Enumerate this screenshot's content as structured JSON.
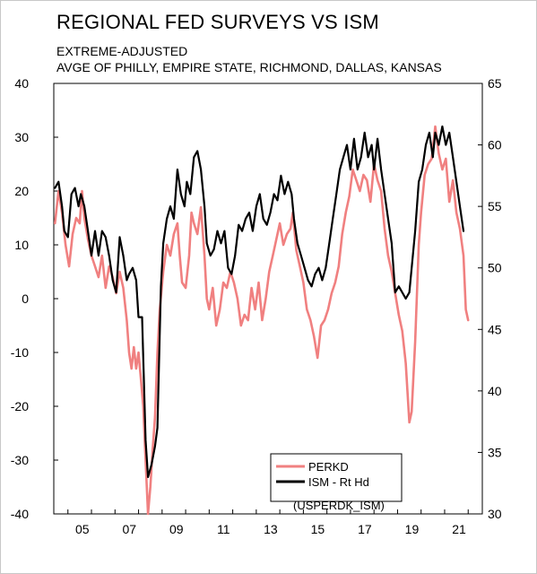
{
  "header": {
    "title": "REGIONAL FED SURVEYS VS ISM",
    "subtitle1": "EXTREME-ADJUSTED",
    "subtitle2": "AVGE OF PHILLY, EMPIRE STATE, RICHMOND, DALLAS, KANSAS"
  },
  "legend": {
    "code": "(USPERDK_ISM)"
  },
  "chart_data": {
    "type": "line",
    "title": "REGIONAL FED SURVEYS VS ISM",
    "subtitle": "EXTREME-ADJUSTED; AVGE OF PHILLY, EMPIRE STATE, RICHMOND, DALLAS, KANSAS",
    "xlabel": "",
    "ylabel_left": "",
    "ylabel_right": "",
    "xlim": [
      2004.4,
      2022.6
    ],
    "ylim_left": [
      -40,
      40
    ],
    "ylim_right": [
      30,
      65
    ],
    "x_ticks": [
      {
        "label": "05",
        "x": 2005.0
      },
      {
        "label": "07",
        "x": 2007.0
      },
      {
        "label": "09",
        "x": 2009.0
      },
      {
        "label": "11",
        "x": 2011.0
      },
      {
        "label": "13",
        "x": 2013.0
      },
      {
        "label": "15",
        "x": 2015.0
      },
      {
        "label": "17",
        "x": 2017.0
      },
      {
        "label": "19",
        "x": 2019.0
      },
      {
        "label": "21",
        "x": 2021.0
      }
    ],
    "y_ticks_left": [
      40,
      30,
      20,
      10,
      0,
      -10,
      -20,
      -30,
      -40
    ],
    "y_ticks_right": [
      65,
      60,
      55,
      50,
      45,
      40,
      35,
      30
    ],
    "grid": false,
    "legend_position": "bottom-right",
    "series": [
      {
        "name": "PERKD",
        "axis": "left",
        "color": "#f08080",
        "points": [
          [
            2004.45,
            14
          ],
          [
            2004.6,
            20
          ],
          [
            2004.75,
            16
          ],
          [
            2004.9,
            10
          ],
          [
            2005.05,
            6
          ],
          [
            2005.2,
            12
          ],
          [
            2005.35,
            15
          ],
          [
            2005.5,
            14
          ],
          [
            2005.6,
            20
          ],
          [
            2005.7,
            15
          ],
          [
            2005.85,
            11
          ],
          [
            2006.0,
            8
          ],
          [
            2006.15,
            6
          ],
          [
            2006.3,
            4
          ],
          [
            2006.45,
            8
          ],
          [
            2006.6,
            2
          ],
          [
            2006.75,
            6
          ],
          [
            2006.9,
            4
          ],
          [
            2007.05,
            1
          ],
          [
            2007.2,
            5
          ],
          [
            2007.35,
            2
          ],
          [
            2007.5,
            -4
          ],
          [
            2007.6,
            -10
          ],
          [
            2007.7,
            -13
          ],
          [
            2007.8,
            -9
          ],
          [
            2007.9,
            -13
          ],
          [
            2008.0,
            -10
          ],
          [
            2008.1,
            -15
          ],
          [
            2008.2,
            -20
          ],
          [
            2008.3,
            -30
          ],
          [
            2008.4,
            -40
          ],
          [
            2008.5,
            -35
          ],
          [
            2008.6,
            -28
          ],
          [
            2008.7,
            -22
          ],
          [
            2008.8,
            -10
          ],
          [
            2008.9,
            -2
          ],
          [
            2009.05,
            5
          ],
          [
            2009.2,
            10
          ],
          [
            2009.35,
            8
          ],
          [
            2009.5,
            12
          ],
          [
            2009.65,
            14
          ],
          [
            2009.75,
            8
          ],
          [
            2009.85,
            3
          ],
          [
            2010.0,
            2
          ],
          [
            2010.15,
            8
          ],
          [
            2010.25,
            16
          ],
          [
            2010.35,
            14
          ],
          [
            2010.5,
            12
          ],
          [
            2010.65,
            17
          ],
          [
            2010.8,
            8
          ],
          [
            2010.9,
            0
          ],
          [
            2011.0,
            -2
          ],
          [
            2011.15,
            2
          ],
          [
            2011.3,
            -5
          ],
          [
            2011.45,
            -2
          ],
          [
            2011.6,
            3
          ],
          [
            2011.75,
            2
          ],
          [
            2011.9,
            5
          ],
          [
            2012.05,
            3
          ],
          [
            2012.2,
            0
          ],
          [
            2012.35,
            -5
          ],
          [
            2012.5,
            -3
          ],
          [
            2012.65,
            -4
          ],
          [
            2012.8,
            2
          ],
          [
            2012.95,
            -2
          ],
          [
            2013.1,
            3
          ],
          [
            2013.25,
            -4
          ],
          [
            2013.4,
            0
          ],
          [
            2013.55,
            5
          ],
          [
            2013.7,
            8
          ],
          [
            2013.85,
            11
          ],
          [
            2014.0,
            14
          ],
          [
            2014.15,
            10
          ],
          [
            2014.3,
            12
          ],
          [
            2014.45,
            13
          ],
          [
            2014.55,
            16
          ],
          [
            2014.7,
            9
          ],
          [
            2014.85,
            6
          ],
          [
            2015.0,
            3
          ],
          [
            2015.15,
            -2
          ],
          [
            2015.3,
            -4
          ],
          [
            2015.45,
            -7
          ],
          [
            2015.6,
            -11
          ],
          [
            2015.75,
            -5
          ],
          [
            2015.9,
            -4
          ],
          [
            2016.05,
            -2
          ],
          [
            2016.2,
            1
          ],
          [
            2016.35,
            3
          ],
          [
            2016.5,
            6
          ],
          [
            2016.65,
            12
          ],
          [
            2016.8,
            16
          ],
          [
            2016.95,
            19
          ],
          [
            2017.1,
            24
          ],
          [
            2017.25,
            22
          ],
          [
            2017.4,
            20
          ],
          [
            2017.55,
            23
          ],
          [
            2017.7,
            22
          ],
          [
            2017.85,
            18
          ],
          [
            2018.0,
            25
          ],
          [
            2018.15,
            22
          ],
          [
            2018.3,
            20
          ],
          [
            2018.45,
            13
          ],
          [
            2018.6,
            8
          ],
          [
            2018.75,
            5
          ],
          [
            2018.9,
            1
          ],
          [
            2019.05,
            -3
          ],
          [
            2019.2,
            -6
          ],
          [
            2019.35,
            -12
          ],
          [
            2019.5,
            -23
          ],
          [
            2019.6,
            -21
          ],
          [
            2019.75,
            -8
          ],
          [
            2019.9,
            10
          ],
          [
            2020.0,
            16
          ],
          [
            2020.15,
            23
          ],
          [
            2020.3,
            25
          ],
          [
            2020.45,
            26
          ],
          [
            2020.6,
            32
          ],
          [
            2020.75,
            27
          ],
          [
            2020.9,
            24
          ],
          [
            2021.05,
            26
          ],
          [
            2021.2,
            18
          ],
          [
            2021.35,
            22
          ],
          [
            2021.5,
            16
          ],
          [
            2021.65,
            13
          ],
          [
            2021.8,
            8
          ],
          [
            2021.9,
            -2
          ],
          [
            2022.0,
            -4
          ]
        ]
      },
      {
        "name": "ISM - Rt Hd",
        "axis": "right",
        "color": "#000000",
        "points": [
          [
            2004.45,
            56.5
          ],
          [
            2004.6,
            57
          ],
          [
            2004.75,
            55
          ],
          [
            2004.85,
            53
          ],
          [
            2005.0,
            52.5
          ],
          [
            2005.15,
            56
          ],
          [
            2005.3,
            56.5
          ],
          [
            2005.45,
            55
          ],
          [
            2005.55,
            56
          ],
          [
            2005.7,
            55
          ],
          [
            2005.85,
            53
          ],
          [
            2006.0,
            51
          ],
          [
            2006.15,
            53
          ],
          [
            2006.3,
            51
          ],
          [
            2006.45,
            53
          ],
          [
            2006.6,
            52.5
          ],
          [
            2006.75,
            51
          ],
          [
            2006.9,
            49
          ],
          [
            2007.05,
            48
          ],
          [
            2007.2,
            52.5
          ],
          [
            2007.35,
            51
          ],
          [
            2007.5,
            49
          ],
          [
            2007.6,
            49.5
          ],
          [
            2007.75,
            50
          ],
          [
            2007.9,
            49
          ],
          [
            2008.0,
            46
          ],
          [
            2008.15,
            46
          ],
          [
            2008.3,
            36
          ],
          [
            2008.4,
            33
          ],
          [
            2008.55,
            34
          ],
          [
            2008.7,
            35.5
          ],
          [
            2008.8,
            37
          ],
          [
            2008.95,
            48.5
          ],
          [
            2009.05,
            52
          ],
          [
            2009.2,
            54
          ],
          [
            2009.35,
            55
          ],
          [
            2009.5,
            54
          ],
          [
            2009.65,
            58
          ],
          [
            2009.8,
            56
          ],
          [
            2009.95,
            55
          ],
          [
            2010.05,
            57
          ],
          [
            2010.2,
            56
          ],
          [
            2010.35,
            59
          ],
          [
            2010.5,
            59.5
          ],
          [
            2010.65,
            58
          ],
          [
            2010.8,
            55
          ],
          [
            2010.9,
            52
          ],
          [
            2011.05,
            51
          ],
          [
            2011.2,
            51.5
          ],
          [
            2011.35,
            53
          ],
          [
            2011.5,
            52
          ],
          [
            2011.65,
            53
          ],
          [
            2011.8,
            50
          ],
          [
            2011.95,
            49.5
          ],
          [
            2012.1,
            51
          ],
          [
            2012.25,
            53.5
          ],
          [
            2012.4,
            53
          ],
          [
            2012.55,
            54
          ],
          [
            2012.7,
            54.5
          ],
          [
            2012.85,
            53
          ],
          [
            2013.0,
            55
          ],
          [
            2013.15,
            56
          ],
          [
            2013.3,
            54
          ],
          [
            2013.45,
            53.5
          ],
          [
            2013.6,
            54.5
          ],
          [
            2013.75,
            56
          ],
          [
            2013.9,
            55.5
          ],
          [
            2014.05,
            57.5
          ],
          [
            2014.2,
            56
          ],
          [
            2014.35,
            57
          ],
          [
            2014.5,
            56
          ],
          [
            2014.6,
            54
          ],
          [
            2014.75,
            52
          ],
          [
            2014.9,
            51
          ],
          [
            2015.05,
            50
          ],
          [
            2015.2,
            49
          ],
          [
            2015.35,
            48.5
          ],
          [
            2015.5,
            49.5
          ],
          [
            2015.65,
            50
          ],
          [
            2015.8,
            49
          ],
          [
            2015.95,
            50
          ],
          [
            2016.1,
            52
          ],
          [
            2016.25,
            54
          ],
          [
            2016.4,
            56
          ],
          [
            2016.55,
            58
          ],
          [
            2016.7,
            59
          ],
          [
            2016.85,
            60
          ],
          [
            2017.0,
            58
          ],
          [
            2017.15,
            60.5
          ],
          [
            2017.3,
            58
          ],
          [
            2017.45,
            59
          ],
          [
            2017.6,
            61
          ],
          [
            2017.75,
            59
          ],
          [
            2017.9,
            60
          ],
          [
            2018.0,
            58
          ],
          [
            2018.15,
            60.5
          ],
          [
            2018.3,
            58
          ],
          [
            2018.45,
            56
          ],
          [
            2018.6,
            54
          ],
          [
            2018.75,
            52
          ],
          [
            2018.9,
            48
          ],
          [
            2019.05,
            48.5
          ],
          [
            2019.2,
            48
          ],
          [
            2019.35,
            47.5
          ],
          [
            2019.5,
            48
          ],
          [
            2019.65,
            51
          ],
          [
            2019.75,
            53
          ],
          [
            2019.9,
            57
          ],
          [
            2020.05,
            58
          ],
          [
            2020.2,
            60
          ],
          [
            2020.35,
            61
          ],
          [
            2020.5,
            59
          ],
          [
            2020.6,
            61
          ],
          [
            2020.75,
            60
          ],
          [
            2020.9,
            61.5
          ],
          [
            2021.05,
            60
          ],
          [
            2021.2,
            61
          ],
          [
            2021.35,
            59
          ],
          [
            2021.5,
            57
          ],
          [
            2021.65,
            55
          ],
          [
            2021.8,
            53
          ]
        ]
      }
    ]
  }
}
